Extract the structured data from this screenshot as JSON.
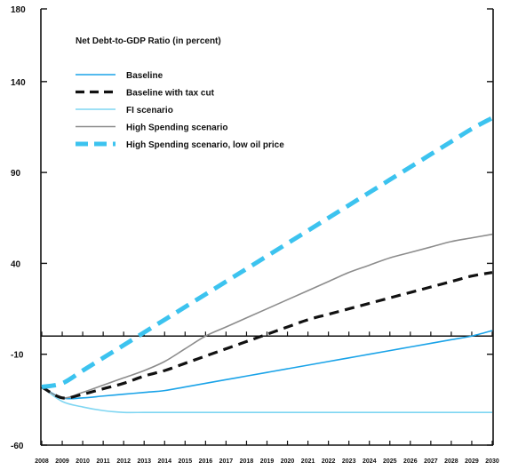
{
  "chart_data": {
    "type": "line",
    "title": "Net Debt-to-GDP Ratio (in percent)",
    "xlabel": "",
    "ylabel": "",
    "ylim": [
      -60,
      180
    ],
    "yticks": [
      180,
      140,
      90,
      40,
      -10,
      -60
    ],
    "ytick_labels": [
      "180",
      "140",
      "90",
      "40",
      "-10",
      "-60"
    ],
    "x": [
      2008,
      2009,
      2010,
      2011,
      2012,
      2013,
      2014,
      2015,
      2016,
      2017,
      2018,
      2019,
      2020,
      2021,
      2022,
      2023,
      2024,
      2025,
      2026,
      2027,
      2028,
      2029,
      2030
    ],
    "xtick_labels": [
      "2008",
      "2009",
      "2010",
      "2011",
      "2012",
      "2013",
      "2014",
      "2015",
      "2016",
      "2017",
      "2018",
      "2019",
      "2020",
      "2021",
      "2022",
      "2023",
      "2024",
      "2025",
      "2026",
      "2027",
      "2028",
      "2029",
      "2030"
    ],
    "zero_line": 0,
    "legend_position": "top-left",
    "series": [
      {
        "name": "Baseline",
        "color": "#1aa3e8",
        "style": "solid",
        "values": [
          -28,
          -34,
          -34,
          -33,
          -32,
          -31,
          -30,
          -28,
          -26,
          -24,
          -22,
          -20,
          -18,
          -16,
          -14,
          -12,
          -10,
          -8,
          -6,
          -4,
          -2,
          0,
          3
        ]
      },
      {
        "name": "Baseline with tax cut",
        "color": "#111111",
        "style": "dashed",
        "values": [
          -28,
          -34,
          -32,
          -29,
          -26,
          -22,
          -19,
          -15,
          -11,
          -7,
          -3,
          1,
          5,
          9,
          12,
          15,
          18,
          21,
          24,
          27,
          30,
          33,
          35
        ]
      },
      {
        "name": "FI scenario",
        "color": "#7fd6f2",
        "style": "solid",
        "values": [
          -28,
          -36,
          -39,
          -41,
          -42,
          -42,
          -42,
          -42,
          -42,
          -42,
          -42,
          -42,
          -42,
          -42,
          -42,
          -42,
          -42,
          -42,
          -42,
          -42,
          -42,
          -42,
          -42
        ]
      },
      {
        "name": "High Spending scenario",
        "color": "#8c8c8c",
        "style": "solid",
        "values": [
          -28,
          -34,
          -31,
          -27,
          -23,
          -19,
          -14,
          -7,
          0,
          5,
          10,
          15,
          20,
          25,
          30,
          35,
          39,
          43,
          46,
          49,
          52,
          54,
          56
        ]
      },
      {
        "name": "High Spending scenario, low oil price",
        "color": "#3cc3ef",
        "style": "dashed",
        "values": [
          -28,
          -26,
          -19,
          -12,
          -5,
          2,
          9,
          16,
          23,
          30,
          37,
          44,
          51,
          58,
          65,
          72,
          79,
          86,
          93,
          100,
          107,
          114,
          120
        ]
      }
    ]
  }
}
